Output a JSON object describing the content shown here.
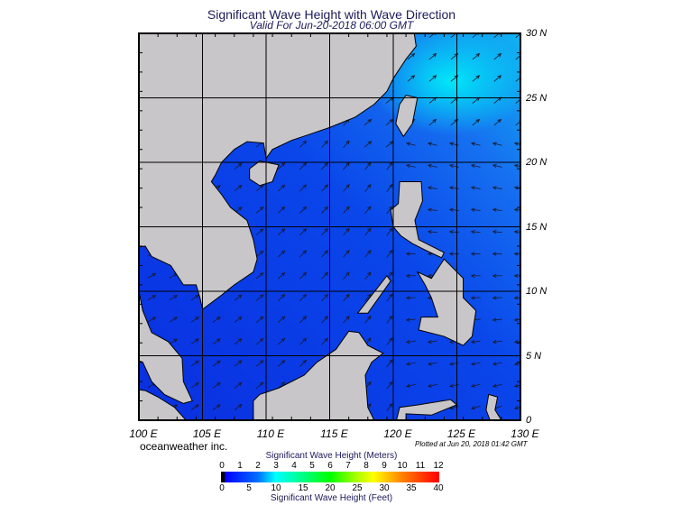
{
  "header": {
    "title": "Significant Wave Height with Wave Direction",
    "subtitle": "Valid For Jun-20-2018 06:00 GMT"
  },
  "map": {
    "lon_range": [
      100,
      130
    ],
    "lat_range": [
      0,
      30
    ],
    "lat_labels": [
      "30 N",
      "25 N",
      "20 N",
      "15 N",
      "10 N",
      "5 N",
      "0"
    ],
    "lon_labels": [
      "100 E",
      "105 E",
      "110 E",
      "115 E",
      "120 E",
      "125 E",
      "130 E"
    ],
    "colors": {
      "land": "#c8c6c8",
      "sea": "#0a3ce6",
      "sea_light": "#1e8cf0",
      "sea_high": "#00dcf5",
      "arrow": "#1a1a2a"
    }
  },
  "footer": {
    "brand": "oceanweather inc.",
    "plotted": "Plotted at Jun 20, 2018 01:42 GMT"
  },
  "legend": {
    "title_meters": "Significant Wave Height (Meters)",
    "title_feet": "Significant Wave Height (Feet)",
    "meters_ticks": [
      "0",
      "1",
      "2",
      "3",
      "4",
      "5",
      "6",
      "7",
      "8",
      "9",
      "10",
      "11",
      "12"
    ],
    "feet_ticks": [
      "0",
      "5",
      "10",
      "15",
      "20",
      "25",
      "30",
      "35",
      "40"
    ]
  }
}
